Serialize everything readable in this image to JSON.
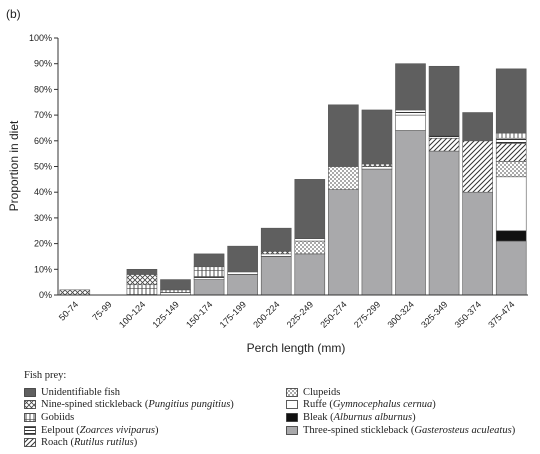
{
  "chart_data": {
    "type": "bar",
    "stacked": true,
    "panel_label": "(b)",
    "xlabel": "Perch length (mm)",
    "ylabel": "Proportion in diet",
    "ylim": [
      0,
      100
    ],
    "yticks": [
      "0%",
      "10%",
      "20%",
      "30%",
      "40%",
      "50%",
      "60%",
      "70%",
      "80%",
      "90%",
      "100%"
    ],
    "grid": false,
    "categories": [
      "50-74",
      "75-99",
      "100-124",
      "125-149",
      "150-174",
      "175-199",
      "200-224",
      "225-249",
      "250-274",
      "275-299",
      "300-324",
      "325-349",
      "350-374",
      "375-474"
    ],
    "legend_title": "Fish prey:",
    "series": [
      {
        "name": "Three-spined stickleback",
        "latin": "Gasterosteus aculeatus",
        "fill": "solid-gray",
        "values": [
          0,
          0,
          0,
          0,
          6,
          8,
          15,
          16,
          41,
          49,
          64,
          56,
          40,
          21
        ]
      },
      {
        "name": "Bleak",
        "latin": "Alburnus alburnus",
        "fill": "solid-black",
        "values": [
          0,
          0,
          0,
          0,
          0,
          0,
          0,
          0,
          0,
          0,
          0,
          0,
          0,
          4
        ]
      },
      {
        "name": "Ruffe",
        "latin": "Gymnocephalus cernua",
        "fill": "white",
        "values": [
          0,
          0,
          0,
          0,
          0,
          0,
          0,
          0,
          0,
          0,
          6,
          0,
          0,
          21
        ]
      },
      {
        "name": "Clupeids",
        "latin": "",
        "fill": "checker",
        "values": [
          0,
          0,
          0,
          0,
          0,
          0,
          0,
          5,
          9,
          0,
          0,
          0,
          0,
          6
        ]
      },
      {
        "name": "Roach",
        "latin": "Rutilus rutilus",
        "fill": "diagonal",
        "values": [
          0,
          0,
          0,
          0,
          0,
          0,
          0,
          0,
          0,
          0,
          0,
          5,
          20,
          7
        ]
      },
      {
        "name": "Eelpout",
        "latin": "Zoarces viviparus",
        "fill": "horizontal",
        "values": [
          0,
          0,
          0,
          1,
          1,
          1,
          1,
          1,
          0,
          1,
          2,
          1,
          0,
          2
        ]
      },
      {
        "name": "Gobiids",
        "latin": "",
        "fill": "vertical-grid",
        "values": [
          0,
          0,
          4,
          1,
          4,
          0,
          0,
          0,
          0,
          0,
          0,
          0,
          0,
          2
        ]
      },
      {
        "name": "Nine-spined stickleback",
        "latin": "Pungitius pungitius",
        "fill": "crosshatch",
        "values": [
          2,
          0,
          4,
          0,
          0,
          0,
          1,
          0,
          0,
          1,
          0,
          0,
          0,
          0
        ]
      },
      {
        "name": "Unidentifiable fish",
        "latin": "",
        "fill": "solid-dark",
        "values": [
          0,
          0,
          2,
          4,
          5,
          10,
          9,
          23,
          24,
          21,
          18,
          27,
          11,
          25
        ]
      }
    ],
    "legend_order": [
      [
        "Unidentifiable fish",
        "Nine-spined stickleback",
        "Gobiids",
        "Eelpout",
        "Roach"
      ],
      [
        "Clupeids",
        "Ruffe",
        "Bleak",
        "Three-spined stickleback"
      ]
    ],
    "colors": {
      "dark": "#5f5f5f",
      "gray": "#a9a9ab",
      "black": "#111111",
      "edge": "#555555"
    }
  }
}
